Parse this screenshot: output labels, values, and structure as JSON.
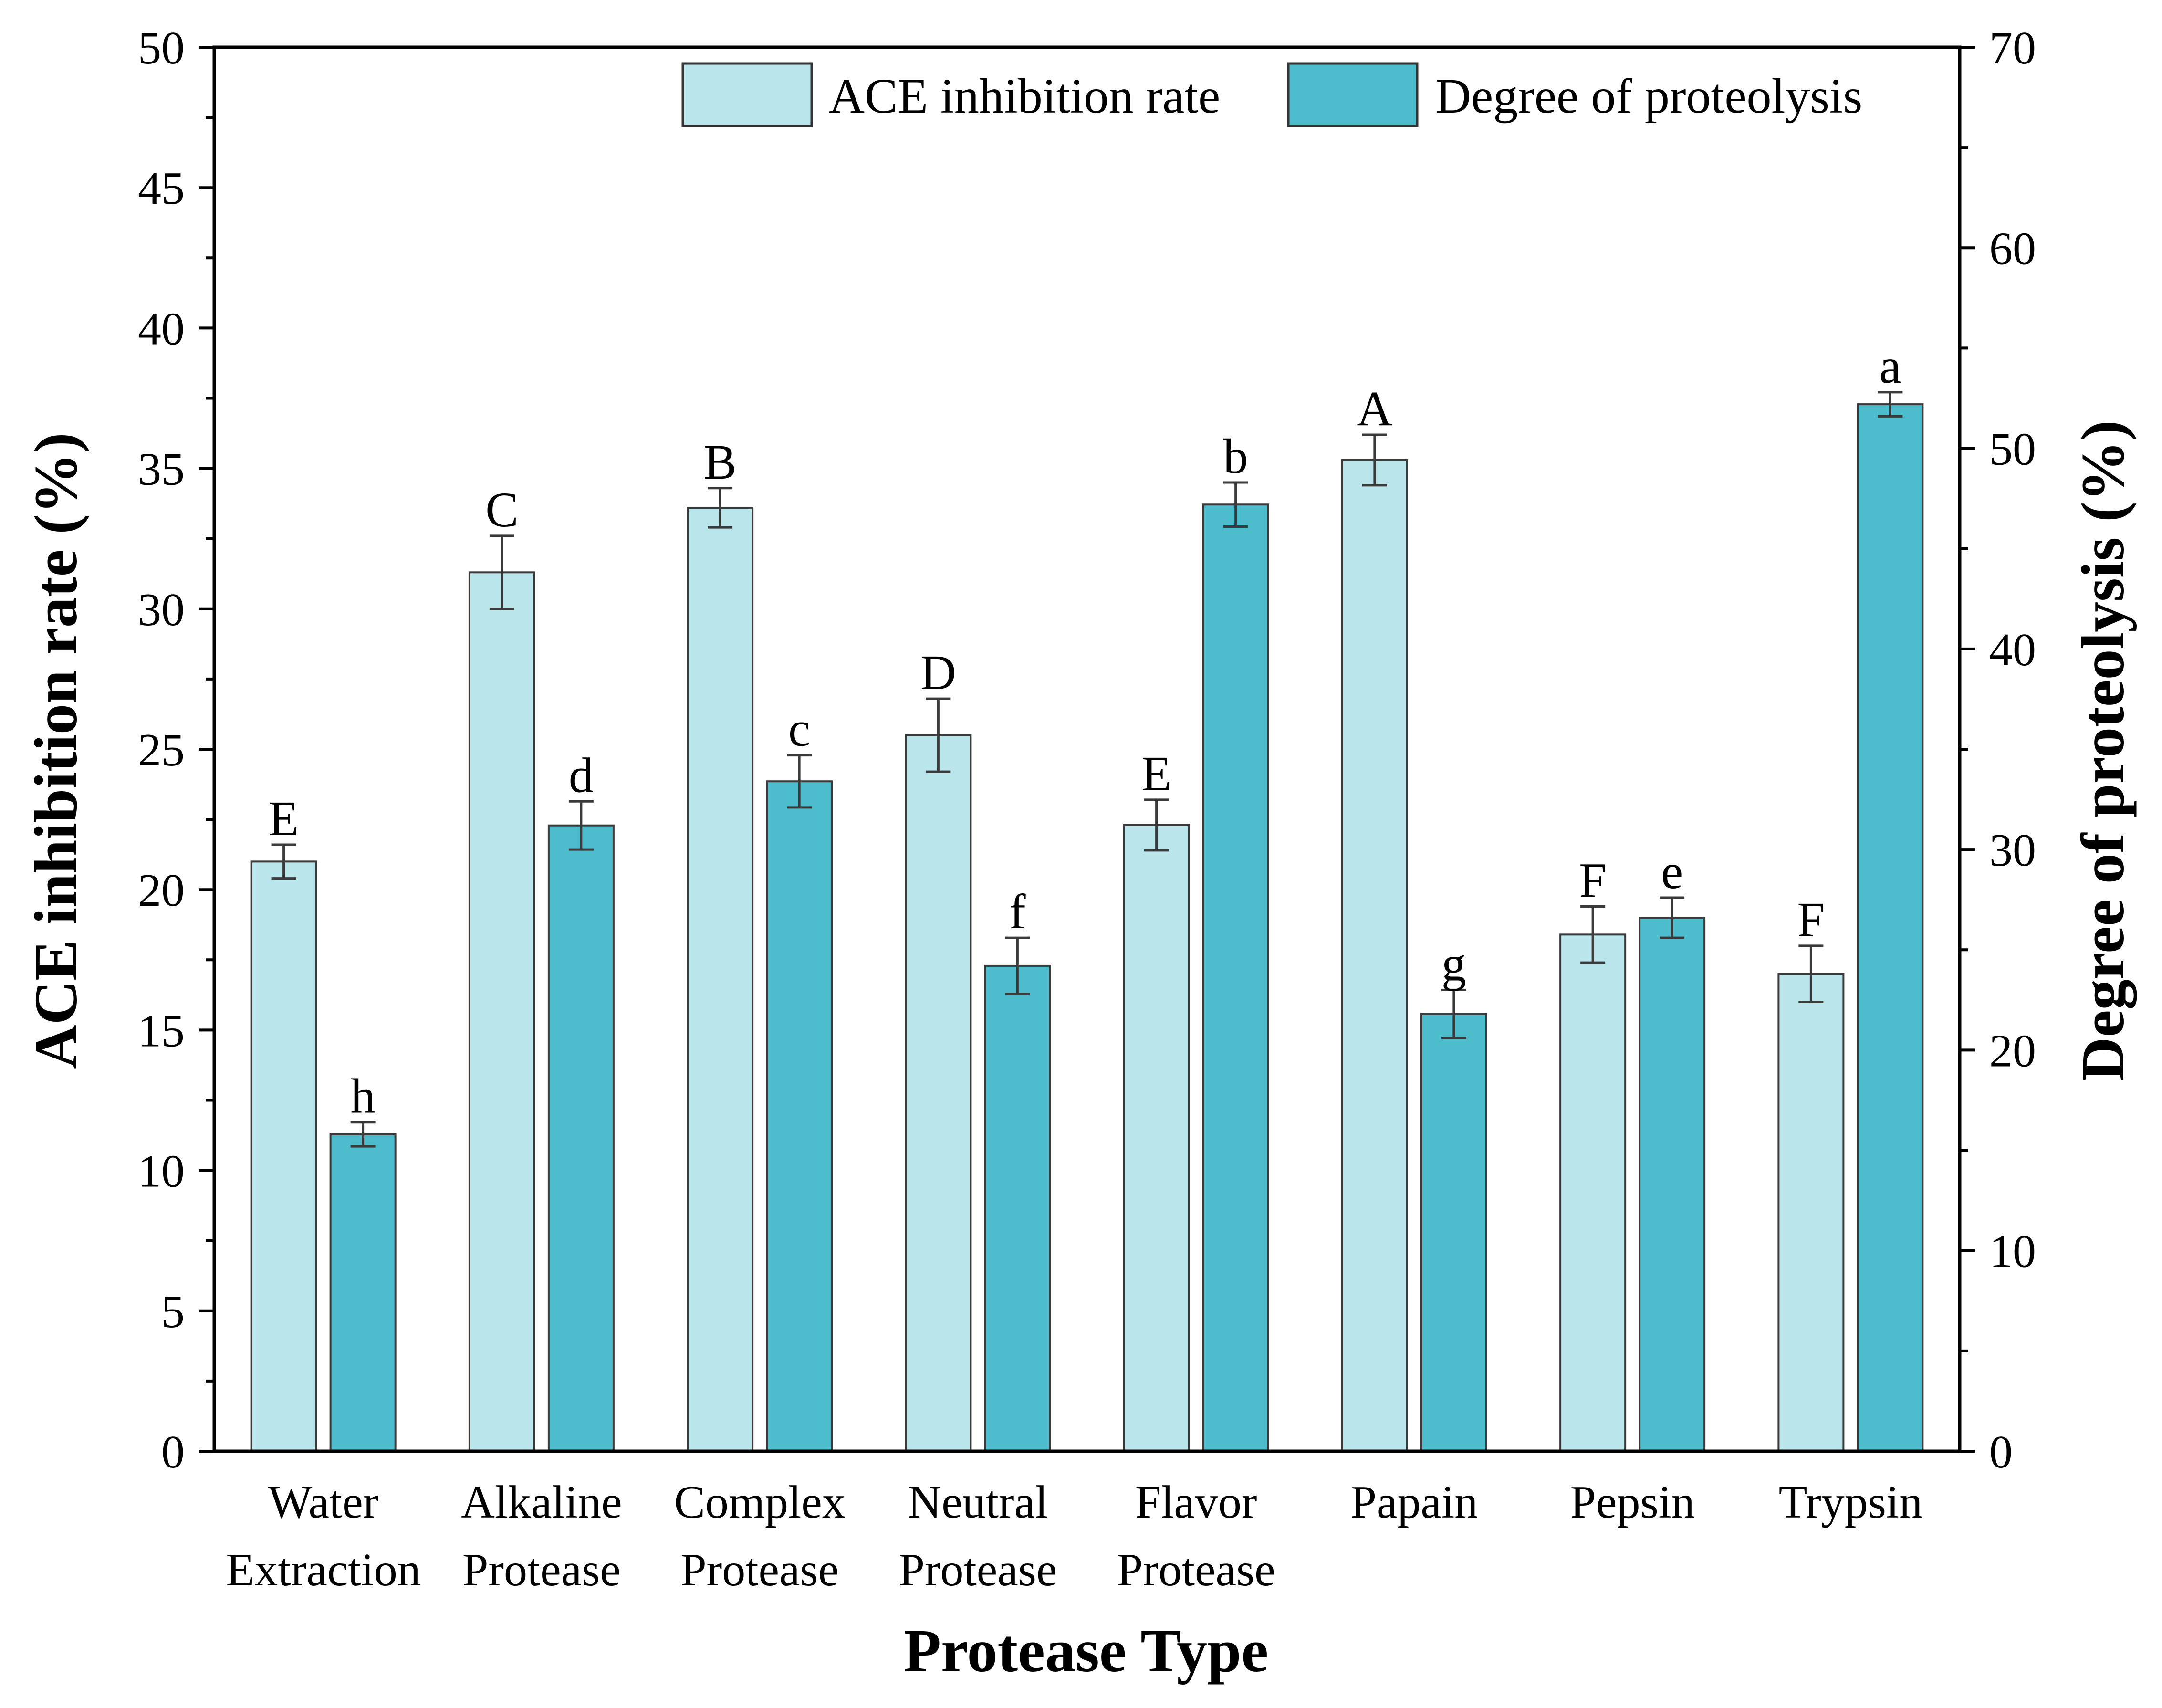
{
  "chart_data": {
    "type": "bar",
    "xlabel": "Protease Type",
    "ylabel": "ACE inhibition rate (%)",
    "y2label": "Degree of proteolysis (%)",
    "ylim": [
      0,
      50
    ],
    "y2lim": [
      0,
      70
    ],
    "yticks": [
      "0",
      "5",
      "10",
      "15",
      "20",
      "25",
      "30",
      "35",
      "40",
      "45",
      "50"
    ],
    "y2ticks": [
      "0",
      "10",
      "20",
      "30",
      "40",
      "50",
      "60",
      "70"
    ],
    "categories": [
      [
        "Water",
        "Extraction"
      ],
      [
        "Alkaline",
        "Protease"
      ],
      [
        "Complex",
        "Protease"
      ],
      [
        "Neutral",
        "Protease"
      ],
      [
        "Flavor",
        "Protease"
      ],
      [
        "Papain"
      ],
      [
        "Pepsin"
      ],
      [
        "Trypsin"
      ]
    ],
    "series": [
      {
        "name": "ACE inhibition rate",
        "axis": "left",
        "color": "#bae5eb",
        "values": [
          21.0,
          31.3,
          33.6,
          25.5,
          22.3,
          35.3,
          18.4,
          17.0
        ],
        "errors": [
          0.6,
          1.3,
          0.7,
          1.3,
          0.9,
          0.9,
          1.0,
          1.0
        ],
        "letters": [
          "E",
          "C",
          "B",
          "D",
          "E",
          "A",
          "F",
          "F"
        ]
      },
      {
        "name": "Degree of proteolysis",
        "axis": "right",
        "color": "#4dbccd",
        "values": [
          15.8,
          31.2,
          33.4,
          24.2,
          47.2,
          21.8,
          26.6,
          52.2
        ],
        "errors": [
          0.6,
          1.2,
          1.3,
          1.4,
          1.1,
          1.2,
          1.0,
          0.6
        ],
        "letters": [
          "h",
          "d",
          "c",
          "f",
          "b",
          "g",
          "e",
          "a"
        ]
      }
    ]
  }
}
